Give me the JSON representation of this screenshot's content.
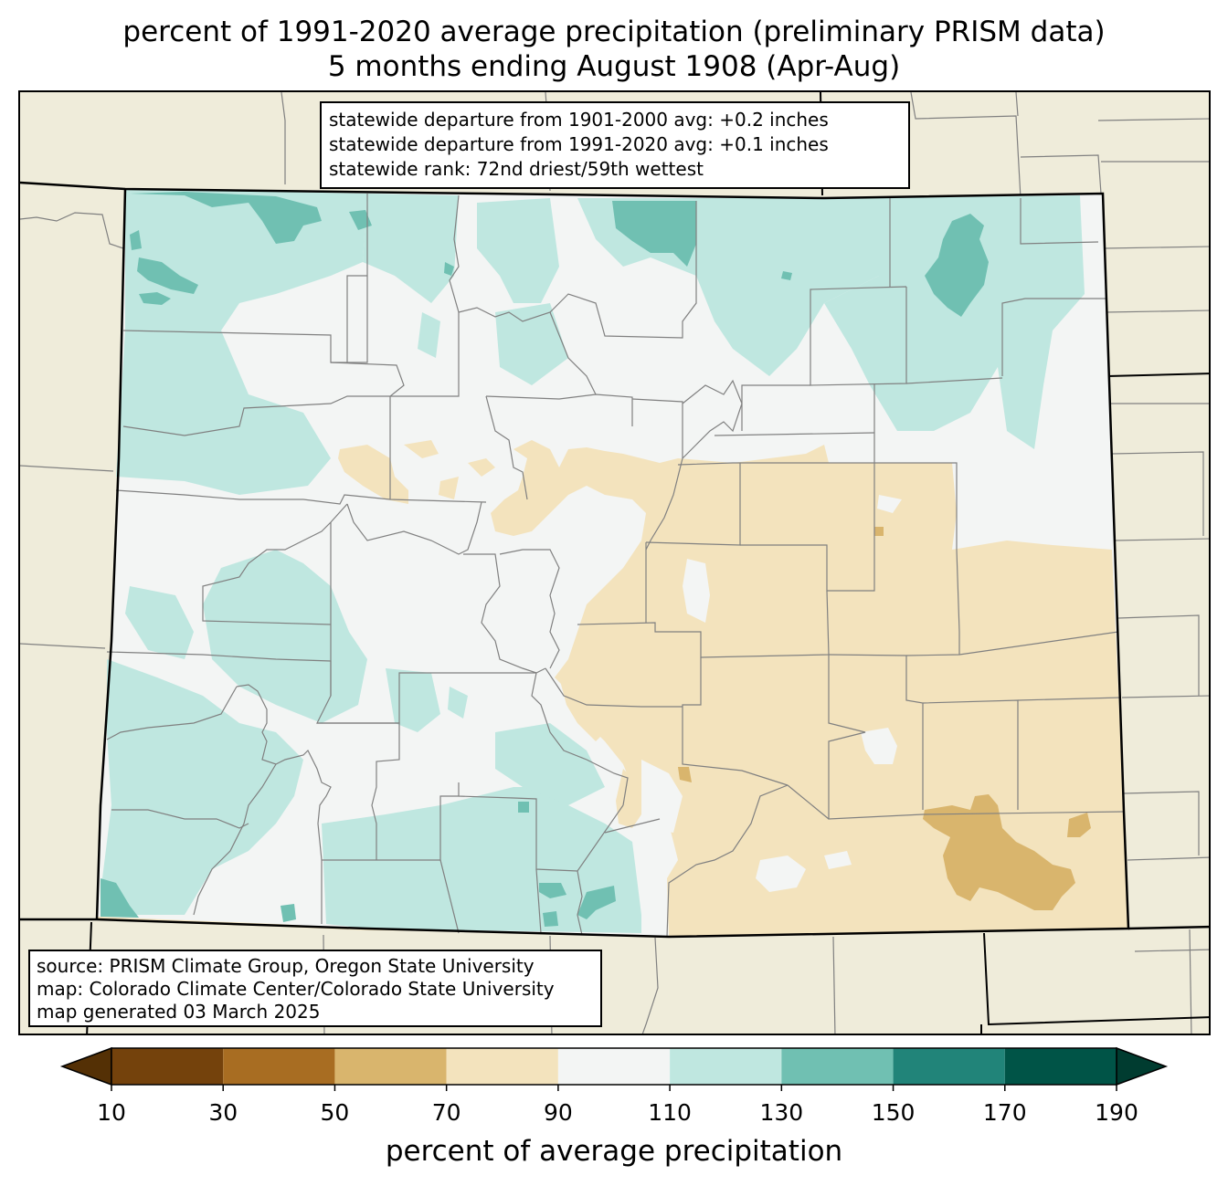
{
  "title": {
    "line1": "percent of 1991-2020 average precipitation (preliminary PRISM data)",
    "line2": "5 months ending August 1908 (Apr-Aug)"
  },
  "stats_box": [
    "statewide departure from 1901-2000 avg: +0.2 inches",
    "statewide departure from 1991-2020 avg: +0.1 inches",
    "statewide rank: 72nd driest/59th wettest"
  ],
  "source_box": [
    "source: PRISM Climate Group, Oregon State University",
    "map: Colorado Climate Center/Colorado State University",
    "map generated 03 March 2025"
  ],
  "colorbar": {
    "title": "percent of average precipitation",
    "ticks": [
      "10",
      "30",
      "50",
      "70",
      "90",
      "110",
      "130",
      "150",
      "170",
      "190"
    ],
    "under_color": "#543005",
    "over_color": "#003c30",
    "bins": [
      {
        "min": 10,
        "max": 30,
        "color": "#74420c"
      },
      {
        "min": 30,
        "max": 50,
        "color": "#a86d22"
      },
      {
        "min": 50,
        "max": 70,
        "color": "#d9b56d"
      },
      {
        "min": 70,
        "max": 90,
        "color": "#f3e3bd"
      },
      {
        "min": 90,
        "max": 110,
        "color": "#f3f5f4"
      },
      {
        "min": 110,
        "max": 130,
        "color": "#bfe7e0"
      },
      {
        "min": 130,
        "max": 150,
        "color": "#70c0b2"
      },
      {
        "min": 150,
        "max": 170,
        "color": "#218479"
      },
      {
        "min": 170,
        "max": 190,
        "color": "#005447"
      }
    ]
  },
  "map_colors": {
    "background": "#efecda",
    "state_border": "#000000",
    "county_border": "#808080"
  }
}
